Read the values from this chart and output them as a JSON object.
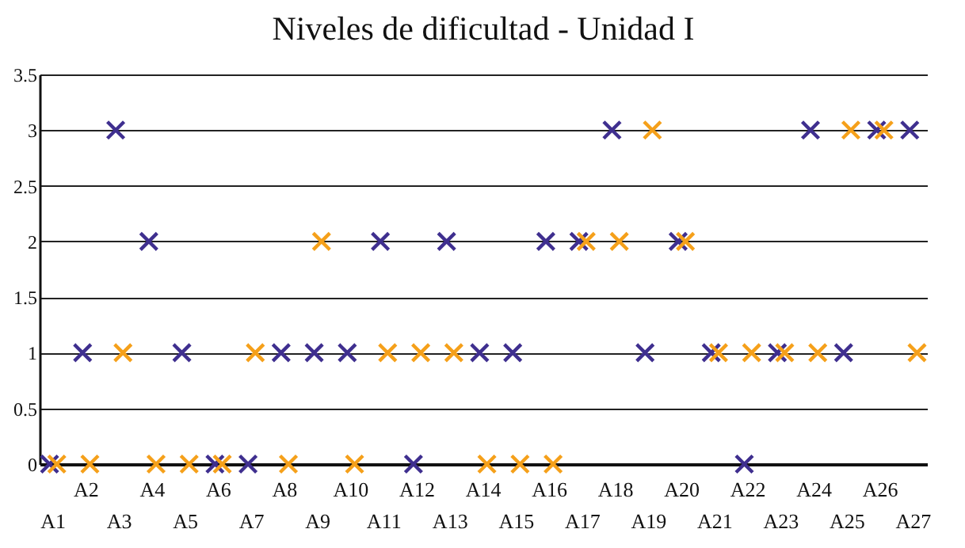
{
  "chart_data": {
    "type": "scatter",
    "title": "Niveles de dificultad - Unidad I",
    "categories": [
      "A1",
      "A2",
      "A3",
      "A4",
      "A5",
      "A6",
      "A7",
      "A8",
      "A9",
      "A10",
      "A11",
      "A12",
      "A13",
      "A14",
      "A15",
      "A16",
      "A17",
      "A18",
      "A19",
      "A20",
      "A21",
      "A22",
      "A23",
      "A24",
      "A25",
      "A26",
      "A27"
    ],
    "series": [
      {
        "color": "#3f2f8f",
        "values": [
          0,
          1,
          3,
          2,
          1,
          0,
          0,
          1,
          1,
          1,
          2,
          0,
          2,
          1,
          1,
          2,
          2,
          3,
          1,
          2,
          1,
          0,
          1,
          3,
          1,
          3,
          3
        ]
      },
      {
        "color": "#f5a01a",
        "values": [
          0,
          0,
          1,
          0,
          0,
          0,
          1,
          0,
          2,
          0,
          1,
          1,
          1,
          0,
          0,
          0,
          2,
          2,
          3,
          2,
          1,
          1,
          1,
          1,
          3,
          3,
          1
        ]
      }
    ],
    "ylim": [
      0,
      3.5
    ],
    "yticks": [
      0,
      0.5,
      1,
      1.5,
      2,
      2.5,
      3,
      3.5
    ],
    "grid": "y",
    "marker": "cross",
    "legend": false
  }
}
